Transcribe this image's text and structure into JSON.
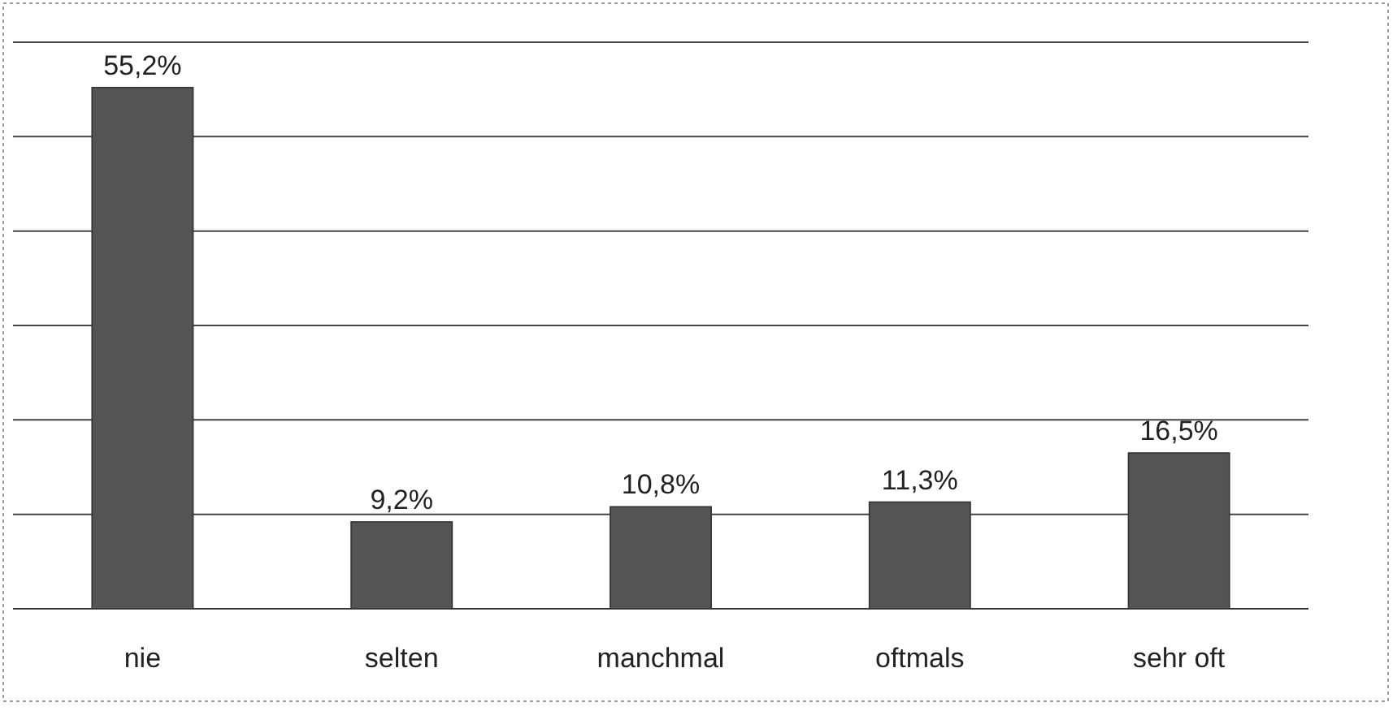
{
  "chart_data": {
    "type": "bar",
    "categories": [
      "nie",
      "selten",
      "manchmal",
      "oftmals",
      "sehr oft"
    ],
    "values": [
      55.2,
      9.2,
      10.8,
      11.3,
      16.5
    ],
    "value_labels": [
      "55,2%",
      "9,2%",
      "10,8%",
      "11,3%",
      "16,5%"
    ],
    "color": "#545454",
    "ylim": [
      0,
      60
    ],
    "yticks": [
      {
        "value": 0,
        "label": null
      },
      {
        "value": 10,
        "label": null
      },
      {
        "value": 20,
        "label": null
      },
      {
        "value": 30,
        "label": null
      },
      {
        "value": 40,
        "label": null
      },
      {
        "value": 50,
        "label": null
      },
      {
        "value": 60,
        "label": null
      }
    ],
    "grid": "y",
    "tick_labels": "x"
  }
}
